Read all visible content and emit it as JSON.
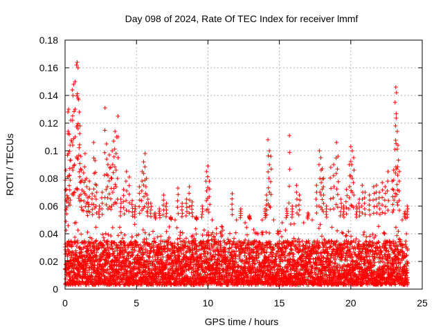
{
  "chart_data": {
    "type": "scatter",
    "title": "Day 098 of 2024, Rate Of TEC Index for receiver lmmf",
    "xlabel": "GPS time / hours",
    "ylabel": "ROTI / TECUs",
    "xlim": [
      0,
      25
    ],
    "ylim": [
      0,
      0.18
    ],
    "xticks": [
      0,
      5,
      10,
      15,
      20,
      25
    ],
    "yticks": [
      0,
      0.02,
      0.04,
      0.06,
      0.08,
      0.1,
      0.12,
      0.14,
      0.16,
      0.18
    ],
    "xtick_labels": [
      "0",
      "5",
      "10",
      "15",
      "20",
      "25"
    ],
    "ytick_labels": [
      "0",
      "0.02",
      "0.04",
      "0.06",
      "0.08",
      "0.1",
      "0.12",
      "0.14",
      "0.16",
      "0.18"
    ],
    "grid": true,
    "marker": "+",
    "color": "#ff0000",
    "data_extent_x": [
      0,
      24
    ],
    "points": [
      [
        0.05,
        0.086
      ],
      [
        0.1,
        0.072
      ],
      [
        0.2,
        0.128
      ],
      [
        0.25,
        0.13
      ],
      [
        0.3,
        0.112
      ],
      [
        0.35,
        0.104
      ],
      [
        0.4,
        0.122
      ],
      [
        0.5,
        0.144
      ],
      [
        0.55,
        0.14
      ],
      [
        0.6,
        0.148
      ],
      [
        0.7,
        0.15
      ],
      [
        0.8,
        0.162
      ],
      [
        0.85,
        0.164
      ],
      [
        0.9,
        0.16
      ],
      [
        0.95,
        0.137
      ],
      [
        1.0,
        0.128
      ],
      [
        1.05,
        0.118
      ],
      [
        1.1,
        0.096
      ],
      [
        1.15,
        0.086
      ],
      [
        1.3,
        0.084
      ],
      [
        1.4,
        0.098
      ],
      [
        1.5,
        0.08
      ],
      [
        1.6,
        0.066
      ],
      [
        1.7,
        0.078
      ],
      [
        1.9,
        0.069
      ],
      [
        2.0,
        0.106
      ],
      [
        2.1,
        0.093
      ],
      [
        2.2,
        0.075
      ],
      [
        2.4,
        0.06
      ],
      [
        2.6,
        0.07
      ],
      [
        2.8,
        0.131
      ],
      [
        2.9,
        0.105
      ],
      [
        3.0,
        0.09
      ],
      [
        3.1,
        0.097
      ],
      [
        3.2,
        0.088
      ],
      [
        3.3,
        0.1
      ],
      [
        3.4,
        0.107
      ],
      [
        3.5,
        0.114
      ],
      [
        3.6,
        0.11
      ],
      [
        3.7,
        0.125
      ],
      [
        3.9,
        0.065
      ],
      [
        4.1,
        0.072
      ],
      [
        4.3,
        0.085
      ],
      [
        4.5,
        0.081
      ],
      [
        4.7,
        0.064
      ],
      [
        4.9,
        0.06
      ],
      [
        5.2,
        0.074
      ],
      [
        5.4,
        0.085
      ],
      [
        5.5,
        0.092
      ],
      [
        5.6,
        0.098
      ],
      [
        5.7,
        0.08
      ],
      [
        5.8,
        0.065
      ],
      [
        6.0,
        0.062
      ],
      [
        6.3,
        0.055
      ],
      [
        6.6,
        0.058
      ],
      [
        6.9,
        0.068
      ],
      [
        7.1,
        0.062
      ],
      [
        7.4,
        0.052
      ],
      [
        7.7,
        0.05
      ],
      [
        7.9,
        0.073
      ],
      [
        8.2,
        0.062
      ],
      [
        8.5,
        0.065
      ],
      [
        8.7,
        0.074
      ],
      [
        8.9,
        0.063
      ],
      [
        9.2,
        0.052
      ],
      [
        9.6,
        0.06
      ],
      [
        9.9,
        0.085
      ],
      [
        10.0,
        0.089
      ],
      [
        10.1,
        0.078
      ],
      [
        10.3,
        0.05
      ],
      [
        10.6,
        0.04
      ],
      [
        11.0,
        0.045
      ],
      [
        11.4,
        0.036
      ],
      [
        11.7,
        0.069
      ],
      [
        12.0,
        0.05
      ],
      [
        12.3,
        0.058
      ],
      [
        12.6,
        0.048
      ],
      [
        12.9,
        0.053
      ],
      [
        13.2,
        0.043
      ],
      [
        13.5,
        0.04
      ],
      [
        13.8,
        0.05
      ],
      [
        14.0,
        0.058
      ],
      [
        14.1,
        0.068
      ],
      [
        14.2,
        0.108
      ],
      [
        14.3,
        0.1
      ],
      [
        14.4,
        0.096
      ],
      [
        14.6,
        0.05
      ],
      [
        14.9,
        0.042
      ],
      [
        15.2,
        0.048
      ],
      [
        15.5,
        0.058
      ],
      [
        15.7,
        0.111
      ],
      [
        15.9,
        0.06
      ],
      [
        16.2,
        0.075
      ],
      [
        16.4,
        0.068
      ],
      [
        16.7,
        0.048
      ],
      [
        17.0,
        0.055
      ],
      [
        17.3,
        0.05
      ],
      [
        17.6,
        0.075
      ],
      [
        17.8,
        0.1
      ],
      [
        17.9,
        0.095
      ],
      [
        18.0,
        0.087
      ],
      [
        18.1,
        0.08
      ],
      [
        18.3,
        0.06
      ],
      [
        18.6,
        0.088
      ],
      [
        18.8,
        0.09
      ],
      [
        19.0,
        0.106
      ],
      [
        19.1,
        0.096
      ],
      [
        19.3,
        0.065
      ],
      [
        19.5,
        0.06
      ],
      [
        19.7,
        0.072
      ],
      [
        19.9,
        0.09
      ],
      [
        20.0,
        0.103
      ],
      [
        20.1,
        0.1
      ],
      [
        20.2,
        0.095
      ],
      [
        20.4,
        0.06
      ],
      [
        20.6,
        0.065
      ],
      [
        20.8,
        0.075
      ],
      [
        21.0,
        0.07
      ],
      [
        21.3,
        0.068
      ],
      [
        21.6,
        0.074
      ],
      [
        21.8,
        0.075
      ],
      [
        22.0,
        0.07
      ],
      [
        22.2,
        0.077
      ],
      [
        22.4,
        0.074
      ],
      [
        22.6,
        0.085
      ],
      [
        22.9,
        0.078
      ],
      [
        23.0,
        0.086
      ],
      [
        23.1,
        0.135
      ],
      [
        23.15,
        0.146
      ],
      [
        23.2,
        0.142
      ],
      [
        23.25,
        0.114
      ],
      [
        23.3,
        0.104
      ],
      [
        23.4,
        0.085
      ],
      [
        23.6,
        0.05
      ],
      [
        23.8,
        0.056
      ],
      [
        23.95,
        0.06
      ]
    ],
    "dense_band": {
      "description_note": "",
      "base_low": 0.003,
      "base_high": 0.035,
      "typical_upper": 0.05
    }
  }
}
